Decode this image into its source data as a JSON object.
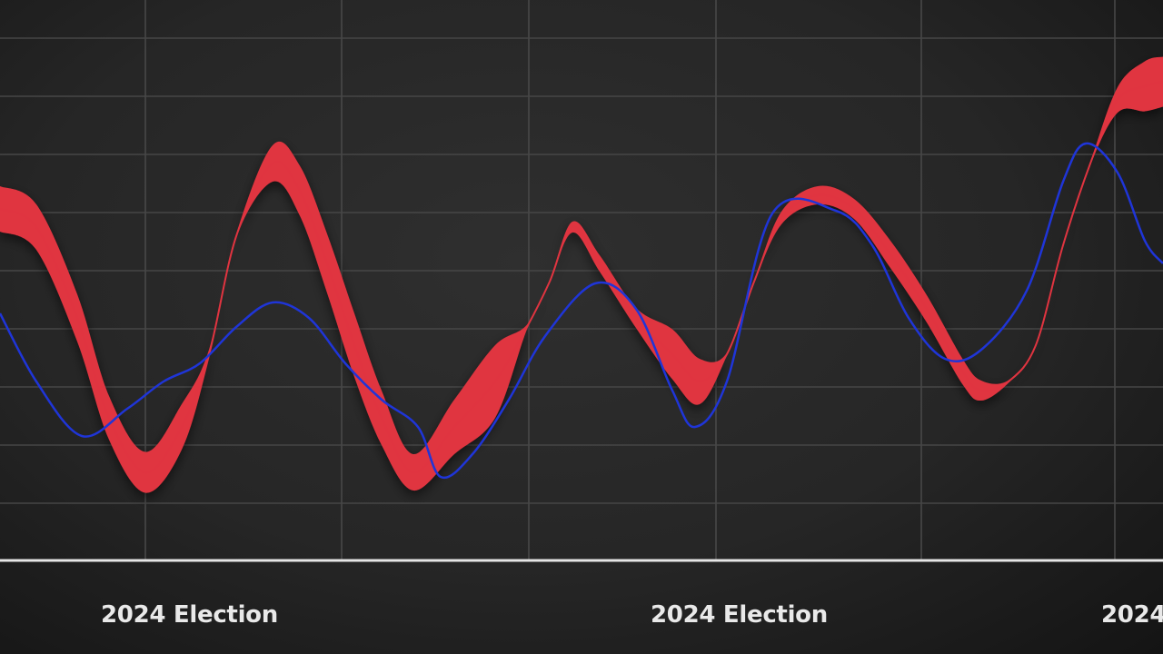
{
  "chart_data": {
    "type": "line",
    "title": "",
    "xlabel": "",
    "ylabel": "",
    "grid": true,
    "x_tick_labels": [
      "2024 Election",
      "2024 Election",
      "2024"
    ],
    "series": [
      {
        "color": "#e03440",
        "style": "ribbon",
        "x": [
          0,
          40,
          85,
          120,
          160,
          200,
          230,
          260,
          300,
          330,
          360,
          390,
          420,
          455,
          500,
          545,
          580,
          605,
          630,
          660,
          700,
          740,
          770,
          800,
          830,
          860,
          900,
          940,
          980,
          1020,
          1060,
          1080,
          1110,
          1140,
          1170,
          1200,
          1230,
          1260,
          1280
        ],
        "y": [
          230,
          250,
          350,
          460,
          520,
          470,
          390,
          260,
          180,
          210,
          290,
          380,
          460,
          520,
          470,
          420,
          360,
          310,
          250,
          290,
          350,
          390,
          420,
          390,
          310,
          240,
          215,
          230,
          280,
          340,
          410,
          430,
          420,
          380,
          270,
          180,
          110,
          95,
          90
        ],
        "width": [
          50,
          50,
          52,
          48,
          45,
          50,
          10,
          4,
          40,
          55,
          65,
          70,
          60,
          40,
          60,
          80,
          5,
          2,
          12,
          18,
          22,
          55,
          50,
          3,
          3,
          14,
          20,
          22,
          30,
          30,
          28,
          22,
          3,
          3,
          3,
          3,
          28,
          55,
          55
        ]
      },
      {
        "color": "#1f35d8",
        "style": "line",
        "x": [
          0,
          40,
          90,
          140,
          180,
          220,
          260,
          300,
          340,
          380,
          420,
          460,
          485,
          520,
          560,
          600,
          655,
          700,
          740,
          765,
          800,
          850,
          920,
          960,
          1000,
          1040,
          1080,
          1130,
          1170,
          1195,
          1230,
          1260,
          1280
        ],
        "y": [
          345,
          420,
          480,
          450,
          420,
          400,
          360,
          333,
          350,
          400,
          440,
          470,
          525,
          500,
          440,
          370,
          312,
          340,
          430,
          470,
          420,
          235,
          232,
          270,
          350,
          395,
          385,
          320,
          200,
          158,
          190,
          265,
          290
        ]
      }
    ]
  }
}
